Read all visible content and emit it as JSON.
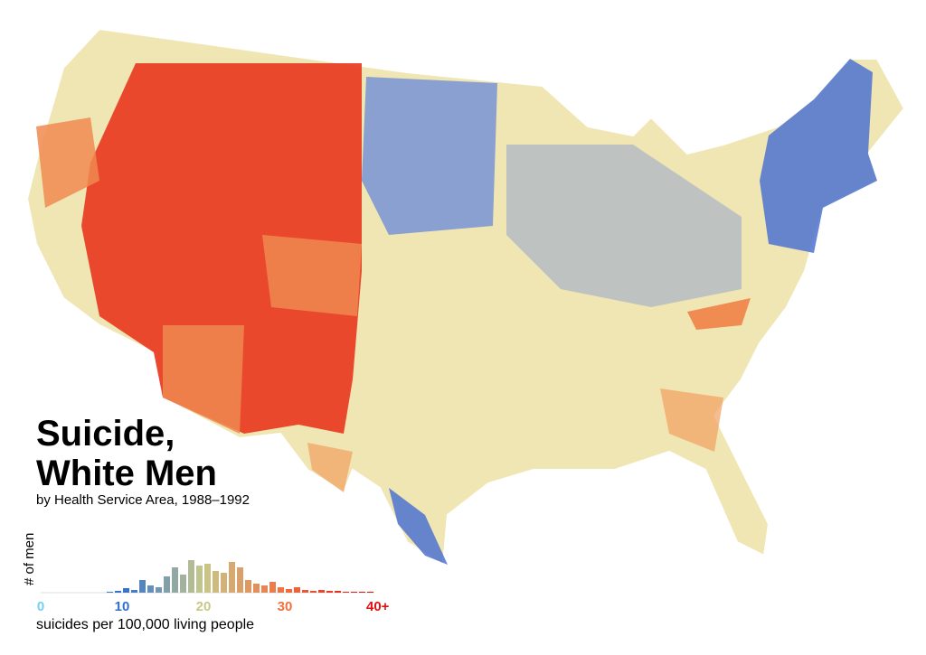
{
  "chart_data": {
    "type": "histogram",
    "title": [
      "Suicide,",
      "White Men"
    ],
    "subtitle": "by Health Service Area, 1988–1992",
    "ylabel": "# of men",
    "xlabel": "suicides per 100,000 living people",
    "bins": [
      0,
      1,
      2,
      3,
      4,
      5,
      6,
      7,
      8,
      9,
      10,
      11,
      12,
      13,
      14,
      15,
      16,
      17,
      18,
      19,
      20,
      21,
      22,
      23,
      24,
      25,
      26,
      27,
      28,
      29,
      30,
      31,
      32,
      33,
      34,
      35,
      36,
      37,
      38,
      39,
      40,
      41
    ],
    "counts": [
      0,
      0,
      0,
      0,
      0,
      0,
      0,
      0,
      1,
      2,
      5,
      3,
      14,
      8,
      6,
      18,
      28,
      20,
      36,
      30,
      32,
      24,
      22,
      34,
      28,
      14,
      10,
      8,
      12,
      6,
      4,
      6,
      3,
      2,
      3,
      2,
      2,
      1,
      1,
      1,
      1
    ],
    "xlim": [
      0,
      41
    ],
    "ylim": [
      0,
      40
    ],
    "xticks": [
      0,
      10,
      20,
      30,
      {
        "value": 40,
        "label": "40+"
      }
    ],
    "colorscale": [
      {
        "value": 0,
        "color": "#6fd0f5"
      },
      {
        "value": 10,
        "color": "#2f6fd0"
      },
      {
        "value": 20,
        "color": "#c8c88a"
      },
      {
        "value": 30,
        "color": "#f07040"
      },
      {
        "value": 40,
        "color": "#e01010"
      }
    ]
  }
}
